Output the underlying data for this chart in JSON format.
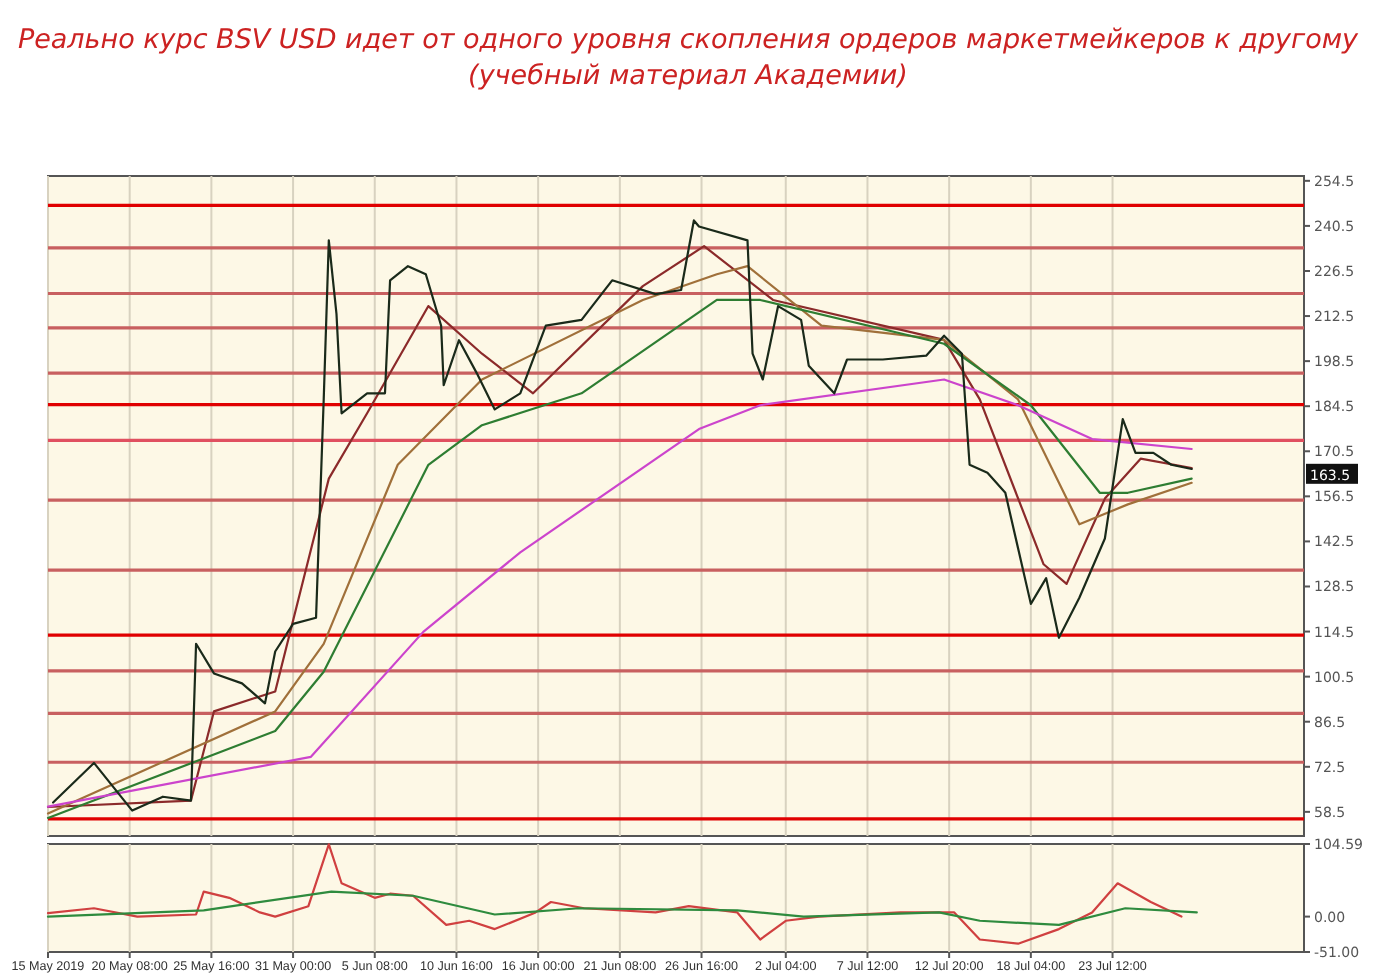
{
  "chart_data": [
    {
      "type": "line",
      "title": "Реально курс BSV USD идет от одного уровня скопления ордеров маркетмейкеров к другому",
      "subtitle": "(учебный материал Академии)",
      "xlim": [
        "2019-05-15T00:00",
        "2019-08-05T00:00"
      ],
      "xticks": [
        {
          "value": "2019-05-15",
          "label": null
        },
        {
          "value": "2019-05-20T08:00",
          "label": null
        },
        {
          "value": "2019-05-25T16:00",
          "label": null
        },
        {
          "value": "2019-05-31T00:00",
          "label": null
        },
        {
          "value": "2019-06-05T08:00",
          "label": null
        },
        {
          "value": "2019-06-10T16:00",
          "label": null
        },
        {
          "value": "2019-06-16T00:00",
          "label": null
        },
        {
          "value": "2019-06-21T08:00",
          "label": null
        },
        {
          "value": "2019-06-26T16:00",
          "label": null
        },
        {
          "value": "2019-07-02T04:00",
          "label": null
        },
        {
          "value": "2019-07-07T12:00",
          "label": null
        },
        {
          "value": "2019-07-12T20:00",
          "label": null
        },
        {
          "value": "2019-07-18T04:00",
          "label": null
        },
        {
          "value": "2019-07-23T12:00",
          "label": null
        }
      ],
      "ylim": [
        51,
        256
      ],
      "yticks": [
        254.5,
        240.5,
        226.5,
        212.5,
        198.5,
        184.5,
        170.5,
        156.5,
        142.5,
        128.5,
        114.5,
        100.5,
        86.5,
        72.5,
        58.5
      ],
      "tick_labels": "y",
      "grid": "x",
      "series": [
        {
          "color": "#8b2a2a",
          "x": [
            "2019-05-15T00:00",
            "2019-05-24T08:00",
            "2019-05-25T20:00",
            "2019-05-29T20:00",
            "2019-06-02T08:00",
            "2019-06-04T20:00",
            "2019-06-08T20:00",
            "2019-06-12T08:00",
            "2019-06-15T16:00",
            "2019-06-22T20:00",
            "2019-06-26T20:00",
            "2019-07-01T08:00",
            "2019-07-12T12:00",
            "2019-07-14T20:00",
            "2019-07-19T00:00",
            "2019-07-20T12:00",
            "2019-07-23T00:00",
            "2019-07-25T08:00",
            "2019-07-28T16:00"
          ],
          "values": [
            60,
            62,
            89.7,
            95.9,
            162,
            182.3,
            215.6,
            200.8,
            188.5,
            221.8,
            234.2,
            217.5,
            205.1,
            186.6,
            135.4,
            129.3,
            155.8,
            168.2,
            165.3
          ]
        },
        {
          "color": "#a0703a",
          "x": [
            "2019-05-15T00:00",
            "2019-05-29T20:00",
            "2019-06-02T00:00",
            "2019-06-06T20:00",
            "2019-06-12T08:00",
            "2019-06-22T20:00",
            "2019-06-27T16:00",
            "2019-06-29T16:00",
            "2019-07-04T12:00",
            "2019-07-12T12:00",
            "2019-07-17T08:00",
            "2019-07-21T08:00",
            "2019-07-24T12:00",
            "2019-07-28T16:00"
          ],
          "values": [
            58,
            89.7,
            110.7,
            166.3,
            192.8,
            217.5,
            225.5,
            228,
            209.5,
            205.1,
            186.6,
            147.8,
            154,
            160.7
          ]
        },
        {
          "color": "#2e7d32",
          "x": [
            "2019-05-15T00:00",
            "2019-05-29T20:00",
            "2019-06-02T00:00",
            "2019-06-08T20:00",
            "2019-06-12T08:00",
            "2019-06-18T20:00",
            "2019-06-27T16:00",
            "2019-06-30T12:00",
            "2019-07-12T12:00",
            "2019-07-18T04:00",
            "2019-07-22T16:00",
            "2019-07-24T12:00",
            "2019-07-28T16:00"
          ],
          "values": [
            56.6,
            83.6,
            102,
            166.3,
            178.6,
            188.5,
            217.5,
            217.5,
            203.9,
            184.8,
            157.6,
            157.6,
            162
          ]
        },
        {
          "color": "#cc44cc",
          "x": [
            "2019-05-15T00:00",
            "2019-06-01T04:00",
            "2019-06-08T12:00",
            "2019-06-14T20:00",
            "2019-06-26T12:00",
            "2019-06-30T12:00",
            "2019-07-12T12:00",
            "2019-07-17T08:00",
            "2019-07-22T04:00",
            "2019-07-28T16:00"
          ],
          "values": [
            60.1,
            75.6,
            114.4,
            139.1,
            177.4,
            184.8,
            192.8,
            184.8,
            174.3,
            171.2
          ]
        },
        {
          "color": "#1a2a1a",
          "x": [
            "2019-05-15T08:00",
            "2019-05-18T00:00",
            "2019-05-20T12:00",
            "2019-05-22T12:00",
            "2019-05-24T08:00",
            "2019-05-24T16:00",
            "2019-05-25T20:00",
            "2019-05-27T16:00",
            "2019-05-29T04:00",
            "2019-05-29T20:00",
            "2019-05-31T00:00",
            "2019-06-01T12:00",
            "2019-06-02T00:00",
            "2019-06-02T08:00",
            "2019-06-02T20:00",
            "2019-06-03T04:00",
            "2019-06-04T20:00",
            "2019-06-06T00:00",
            "2019-06-06T08:00",
            "2019-06-07T12:00",
            "2019-06-08T16:00",
            "2019-06-09T16:00",
            "2019-06-09T20:00",
            "2019-06-10T20:00",
            "2019-06-12T00:00",
            "2019-06-13T04:00",
            "2019-06-14T20:00",
            "2019-06-16T12:00",
            "2019-06-18T20:00",
            "2019-06-20T20:00",
            "2019-06-23T16:00",
            "2019-06-25T08:00",
            "2019-06-26T04:00",
            "2019-06-26T12:00",
            "2019-06-29T16:00",
            "2019-06-30T00:00",
            "2019-06-30T16:00",
            "2019-07-01T16:00",
            "2019-07-03T04:00",
            "2019-07-03T16:00",
            "2019-07-05T08:00",
            "2019-07-06T04:00",
            "2019-07-08T12:00",
            "2019-07-11T08:00",
            "2019-07-12T12:00",
            "2019-07-13T16:00",
            "2019-07-14T04:00",
            "2019-07-15T08:00",
            "2019-07-16T12:00",
            "2019-07-18T04:00",
            "2019-07-19T04:00",
            "2019-07-20T00:00",
            "2019-07-21T08:00",
            "2019-07-23T00:00",
            "2019-07-24T04:00",
            "2019-07-25T00:00",
            "2019-07-26T04:00",
            "2019-07-27T08:00",
            "2019-07-28T16:00"
          ],
          "values": [
            61.4,
            73.7,
            58.9,
            63.2,
            62,
            110.7,
            101.5,
            98.4,
            92.2,
            108.3,
            116.9,
            118.8,
            186.6,
            236,
            213.2,
            182.3,
            188.5,
            188.5,
            223.6,
            228,
            225.5,
            209.5,
            191,
            205,
            194.7,
            183.5,
            188.5,
            209.5,
            211.3,
            223.6,
            219.3,
            220.6,
            242.2,
            240.3,
            236,
            200.8,
            192.8,
            215.6,
            211.3,
            197.1,
            188.5,
            199,
            199,
            200.2,
            206.4,
            200.8,
            166.3,
            163.8,
            157.6,
            123.1,
            131.1,
            112.6,
            125,
            143.4,
            180.5,
            170,
            170,
            166.3,
            165
          ]
        }
      ],
      "ref_lines": [
        {
          "axis": "y",
          "value": 246.9,
          "color": "#e00000"
        },
        {
          "axis": "y",
          "value": 233.7,
          "color": "#c86060"
        },
        {
          "axis": "y",
          "value": 219.5,
          "color": "#c86060"
        },
        {
          "axis": "y",
          "value": 208.8,
          "color": "#c86060"
        },
        {
          "axis": "y",
          "value": 194.8,
          "color": "#c86060"
        },
        {
          "axis": "y",
          "value": 185,
          "color": "#e00000"
        },
        {
          "axis": "y",
          "value": 173.9,
          "color": "#e05060"
        },
        {
          "axis": "y",
          "value": 155.3,
          "color": "#c86060"
        },
        {
          "axis": "y",
          "value": 133.6,
          "color": "#c86060"
        },
        {
          "axis": "y",
          "value": 113.4,
          "color": "#e00000"
        },
        {
          "axis": "y",
          "value": 102.3,
          "color": "#c86060"
        },
        {
          "axis": "y",
          "value": 89.1,
          "color": "#c86060"
        },
        {
          "axis": "y",
          "value": 73.9,
          "color": "#c86060"
        },
        {
          "axis": "y",
          "value": 56.3,
          "color": "#e00000"
        }
      ],
      "annotations": [
        {
          "text": "163.5",
          "y": 163.5
        }
      ]
    },
    {
      "type": "line",
      "xlim": [
        "2019-05-15T00:00",
        "2019-08-05T00:00"
      ],
      "xticks": [
        {
          "value": "2019-05-15",
          "label": "15 May 2019"
        },
        {
          "value": "2019-05-20T08:00",
          "label": "20 May 08:00"
        },
        {
          "value": "2019-05-25T16:00",
          "label": "25 May 16:00"
        },
        {
          "value": "2019-05-31T00:00",
          "label": "31 May 00:00"
        },
        {
          "value": "2019-06-05T08:00",
          "label": "5 Jun 08:00"
        },
        {
          "value": "2019-06-10T16:00",
          "label": "10 Jun 16:00"
        },
        {
          "value": "2019-06-16T00:00",
          "label": "16 Jun 00:00"
        },
        {
          "value": "2019-06-21T08:00",
          "label": "21 Jun 08:00"
        },
        {
          "value": "2019-06-26T16:00",
          "label": "26 Jun 16:00"
        },
        {
          "value": "2019-07-02T04:00",
          "label": "2 Jul 04:00"
        },
        {
          "value": "2019-07-07T12:00",
          "label": "7 Jul 12:00"
        },
        {
          "value": "2019-07-12T20:00",
          "label": "12 Jul 20:00"
        },
        {
          "value": "2019-07-18T04:00",
          "label": "18 Jul 04:00"
        },
        {
          "value": "2019-07-23T12:00",
          "label": "23 Jul 12:00"
        }
      ],
      "ylim": [
        -51,
        104.59
      ],
      "yticks": [
        104.59,
        {
          "value": 0,
          "label": "0.00"
        },
        {
          "value": -51,
          "label": "-51.00"
        }
      ],
      "grid": "x",
      "series": [
        {
          "color": "#d04040",
          "x": [
            "2019-05-15T00:00",
            "2019-05-18T00:00",
            "2019-05-20T20:00",
            "2019-05-24T16:00",
            "2019-05-25T04:00",
            "2019-05-26T20:00",
            "2019-05-28T20:00",
            "2019-05-29T20:00",
            "2019-06-01T00:00",
            "2019-06-02T08:00",
            "2019-06-03T04:00",
            "2019-06-05T08:00",
            "2019-06-06T08:00",
            "2019-06-07T20:00",
            "2019-06-10T00:00",
            "2019-06-11T12:00",
            "2019-06-13T04:00",
            "2019-06-15T20:00",
            "2019-06-16T20:00",
            "2019-06-19T00:00",
            "2019-06-23T16:00",
            "2019-06-25T20:00",
            "2019-06-29T00:00",
            "2019-06-30T12:00",
            "2019-07-02T04:00",
            "2019-07-04T08:00",
            "2019-07-09T16:00",
            "2019-07-13T04:00",
            "2019-07-14T20:00",
            "2019-07-17T08:00",
            "2019-07-20T00:00",
            "2019-07-22T04:00",
            "2019-07-23T20:00",
            "2019-07-26T00:00",
            "2019-07-28T00:00"
          ],
          "values": [
            5,
            12,
            0,
            3,
            36,
            27,
            6,
            0,
            15,
            104,
            48,
            27,
            33,
            30,
            -12,
            -6,
            -18,
            6,
            21,
            12,
            6,
            15,
            6,
            -33,
            -6,
            0,
            6,
            6,
            -33,
            -39,
            -18,
            6,
            48,
            21,
            0
          ]
        },
        {
          "color": "#2e8b3e",
          "x": [
            "2019-05-15T00:00",
            "2019-05-25T04:00",
            "2019-06-02T12:00",
            "2019-06-07T20:00",
            "2019-06-13T04:00",
            "2019-06-18T16:00",
            "2019-06-29T00:00",
            "2019-07-03T08:00",
            "2019-07-12T04:00",
            "2019-07-14T20:00",
            "2019-07-20T00:00",
            "2019-07-24T08:00",
            "2019-07-29T00:00"
          ],
          "values": [
            0,
            9,
            36,
            30,
            3,
            12,
            9,
            0,
            6,
            -6,
            -12,
            12,
            6
          ]
        }
      ]
    }
  ]
}
